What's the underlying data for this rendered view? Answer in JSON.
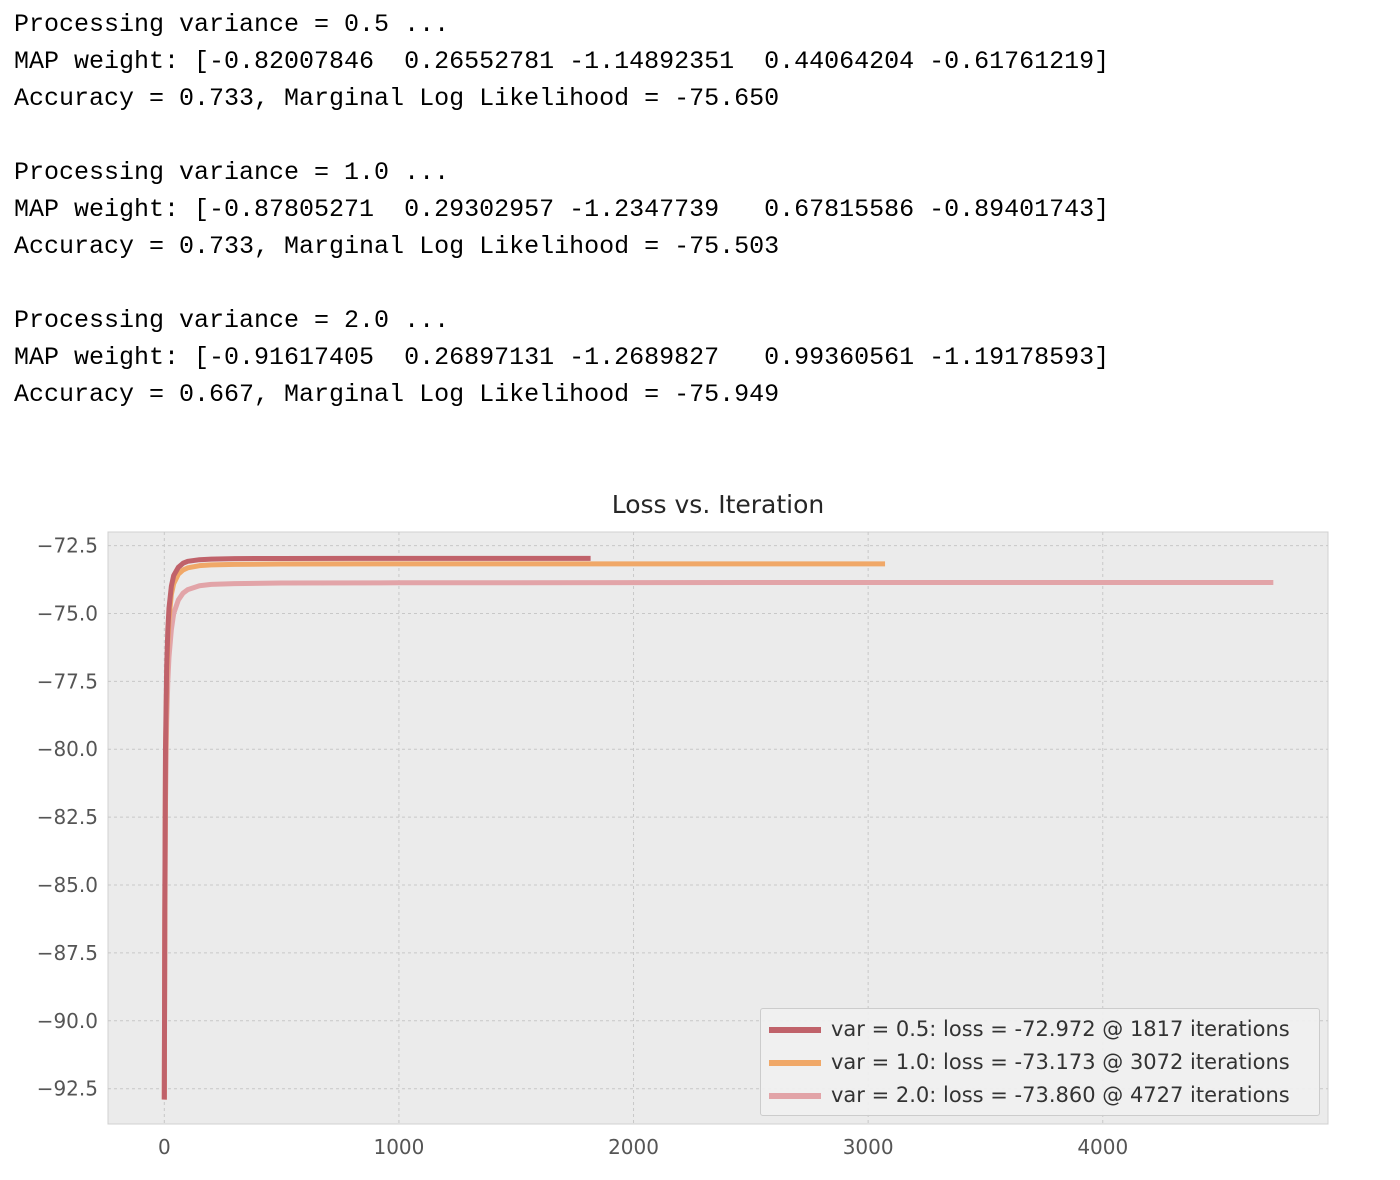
{
  "console": {
    "blocks": [
      {
        "processing": "Processing variance = 0.5 ...",
        "map_weight": "MAP weight: [-0.82007846  0.26552781 -1.14892351  0.44064204 -0.61761219]",
        "accuracy": "Accuracy = 0.733, Marginal Log Likelihood = -75.650"
      },
      {
        "processing": "Processing variance = 1.0 ...",
        "map_weight": "MAP weight: [-0.87805271  0.29302957 -1.2347739   0.67815586 -0.89401743]",
        "accuracy": "Accuracy = 0.733, Marginal Log Likelihood = -75.503"
      },
      {
        "processing": "Processing variance = 2.0 ...",
        "map_weight": "MAP weight: [-0.91617405  0.26897131 -1.2689827   0.99360561 -1.19178593]",
        "accuracy": "Accuracy = 0.667, Marginal Log Likelihood = -75.949"
      }
    ]
  },
  "chart_data": {
    "type": "line",
    "title": "Loss vs. Iteration",
    "xlabel": "",
    "ylabel": "",
    "xlim": [
      -240,
      4960
    ],
    "ylim": [
      -93.8,
      -72.0
    ],
    "xticks": [
      0,
      1000,
      2000,
      3000,
      4000
    ],
    "xtick_labels": [
      "0",
      "1000",
      "2000",
      "3000",
      "4000"
    ],
    "yticks": [
      -72.5,
      -75.0,
      -77.5,
      -80.0,
      -82.5,
      -85.0,
      -87.5,
      -90.0,
      -92.5
    ],
    "ytick_labels": [
      "−72.5",
      "−75.0",
      "−77.5",
      "−80.0",
      "−82.5",
      "−85.0",
      "−87.5",
      "−90.0",
      "−92.5"
    ],
    "grid": true,
    "legend_position": "lower-right",
    "series": [
      {
        "name": "var = 0.5: loss = -72.972 @ 1817 iterations",
        "color": "#c0626a",
        "x": [
          0,
          2,
          5,
          10,
          15,
          20,
          30,
          40,
          60,
          80,
          100,
          150,
          200,
          300,
          500,
          800,
          1200,
          1817
        ],
        "y": [
          -92.9,
          -86.0,
          -80.0,
          -77.0,
          -75.6,
          -74.8,
          -74.0,
          -73.6,
          -73.3,
          -73.15,
          -73.08,
          -73.02,
          -73.0,
          -72.98,
          -72.975,
          -72.973,
          -72.972,
          -72.972
        ]
      },
      {
        "name": "var = 1.0: loss = -73.173 @ 3072 iterations",
        "color": "#f0a868",
        "x": [
          0,
          2,
          5,
          10,
          15,
          20,
          30,
          40,
          60,
          80,
          100,
          150,
          200,
          300,
          500,
          1000,
          2000,
          3072
        ],
        "y": [
          -92.9,
          -86.5,
          -80.5,
          -77.5,
          -76.0,
          -75.2,
          -74.3,
          -73.9,
          -73.55,
          -73.4,
          -73.32,
          -73.24,
          -73.21,
          -73.19,
          -73.18,
          -73.175,
          -73.173,
          -73.173
        ]
      },
      {
        "name": "var = 2.0: loss = -73.860 @ 4727 iterations",
        "color": "#e2a4a8",
        "x": [
          0,
          2,
          5,
          10,
          15,
          20,
          30,
          40,
          60,
          80,
          100,
          150,
          200,
          300,
          500,
          1000,
          2500,
          4727
        ],
        "y": [
          -92.9,
          -87.5,
          -82.0,
          -79.0,
          -77.5,
          -76.6,
          -75.6,
          -75.0,
          -74.5,
          -74.25,
          -74.12,
          -73.98,
          -73.93,
          -73.9,
          -73.88,
          -73.87,
          -73.862,
          -73.86
        ]
      }
    ]
  }
}
